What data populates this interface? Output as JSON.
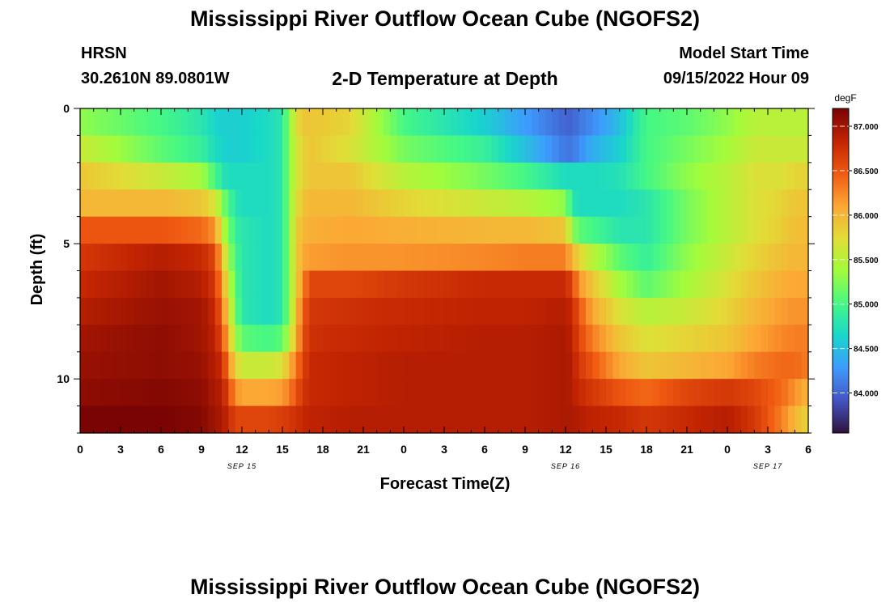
{
  "header": {
    "title": "Mississippi River Outflow Ocean Cube (NGOFS2)",
    "station": "HRSN",
    "coords": "30.2610N  89.0801W",
    "subtitle": "2-D Temperature at Depth",
    "model_start_label": "Model Start Time",
    "model_start_value": "09/15/2022 Hour 09"
  },
  "footer": {
    "title": "Mississippi River Outflow Ocean Cube (NGOFS2)"
  },
  "colors": {
    "colormap": [
      "#30123b",
      "#4454c4",
      "#3e9bfe",
      "#18d6cb",
      "#46f884",
      "#a2fc3c",
      "#e1dd37",
      "#fca735",
      "#ef5911",
      "#c22402",
      "#7a0403"
    ]
  },
  "chart_data": {
    "type": "heatmap",
    "title": "2-D Temperature at Depth",
    "xlabel": "Forecast Time(Z)",
    "ylabel": "Depth (ft)",
    "x_range_hours": [
      0,
      54
    ],
    "ylim": [
      0,
      12
    ],
    "y_inverted": true,
    "x_tick_labels": [
      "0",
      "3",
      "6",
      "9",
      "12",
      "15",
      "18",
      "21",
      "0",
      "3",
      "6",
      "9",
      "12",
      "15",
      "18",
      "21",
      "0",
      "3",
      "6"
    ],
    "y_tick_labels": [
      "0",
      "5",
      "10"
    ],
    "date_labels": [
      {
        "text": "SEP 15",
        "hour": 12
      },
      {
        "text": "SEP 16",
        "hour": 36
      },
      {
        "text": "SEP 17",
        "hour": 51
      }
    ],
    "colorbar": {
      "unit": "degF",
      "min": 83.55,
      "max": 87.2,
      "tick_labels": [
        "84.000",
        "84.500",
        "85.000",
        "85.500",
        "86.000",
        "86.500",
        "87.000"
      ],
      "tick_values": [
        84.0,
        84.5,
        85.0,
        85.5,
        86.0,
        86.5,
        87.0
      ]
    },
    "depth_levels": [
      0.5,
      1.5,
      2.5,
      3.5,
      4.5,
      5.5,
      6.5,
      7.5,
      8.5,
      9.5,
      10.5,
      11.5
    ],
    "time_nodes_hours": [
      0,
      6,
      9,
      10,
      10.5,
      11,
      11.5,
      12,
      14,
      15,
      15.5,
      16,
      16.5,
      17,
      20,
      24,
      30,
      33,
      36,
      36.5,
      37,
      38,
      40,
      42,
      45,
      48,
      50,
      52,
      53,
      54
    ],
    "temperatures": [
      [
        85.3,
        85.0,
        84.8,
        84.65,
        84.6,
        84.6,
        84.6,
        84.6,
        84.7,
        84.8,
        85.3,
        85.7,
        85.9,
        85.9,
        85.8,
        85.0,
        84.6,
        84.3,
        84.0,
        84.0,
        84.1,
        84.2,
        84.5,
        85.0,
        85.1,
        85.3,
        85.5,
        85.5,
        85.5,
        85.5
      ],
      [
        85.6,
        85.1,
        84.9,
        84.7,
        84.65,
        84.6,
        84.6,
        84.6,
        84.7,
        84.8,
        85.3,
        85.6,
        85.8,
        85.9,
        85.7,
        85.2,
        84.9,
        84.5,
        84.1,
        84.1,
        84.2,
        84.4,
        84.6,
        85.0,
        85.2,
        85.4,
        85.6,
        85.6,
        85.6,
        85.6
      ],
      [
        85.9,
        85.6,
        85.4,
        85.0,
        84.8,
        84.7,
        84.7,
        84.7,
        84.7,
        84.8,
        85.3,
        85.6,
        85.8,
        85.9,
        85.9,
        85.5,
        85.2,
        85.0,
        84.7,
        84.7,
        84.7,
        84.7,
        84.75,
        85.0,
        85.3,
        85.5,
        85.7,
        85.7,
        85.8,
        85.8
      ],
      [
        86.0,
        86.0,
        85.9,
        85.7,
        85.3,
        85.0,
        84.8,
        84.7,
        84.7,
        84.8,
        85.3,
        85.7,
        85.9,
        86.0,
        86.0,
        85.8,
        85.6,
        85.5,
        85.3,
        84.8,
        84.7,
        84.7,
        84.7,
        84.8,
        85.2,
        85.5,
        85.7,
        85.8,
        85.9,
        85.9
      ],
      [
        86.5,
        86.5,
        86.4,
        86.2,
        85.6,
        85.2,
        84.9,
        84.8,
        84.7,
        84.8,
        85.3,
        85.8,
        86.0,
        86.05,
        86.1,
        86.05,
        86.0,
        86.0,
        85.9,
        85.3,
        85.1,
        85.0,
        84.8,
        84.8,
        85.2,
        85.5,
        85.7,
        85.85,
        85.95,
        85.95
      ],
      [
        86.7,
        86.9,
        86.8,
        86.6,
        86.0,
        85.4,
        85.0,
        84.8,
        84.7,
        84.8,
        85.3,
        85.8,
        86.1,
        86.15,
        86.2,
        86.2,
        86.25,
        86.3,
        86.3,
        86.0,
        85.8,
        85.5,
        85.1,
        84.9,
        85.3,
        85.6,
        85.8,
        85.95,
        86.0,
        86.0
      ],
      [
        86.8,
        87.0,
        86.9,
        86.7,
        86.2,
        85.6,
        85.1,
        84.8,
        84.7,
        84.8,
        85.3,
        85.8,
        86.2,
        86.6,
        86.6,
        86.7,
        86.8,
        86.8,
        86.8,
        86.6,
        86.2,
        85.9,
        85.4,
        85.1,
        85.4,
        85.7,
        85.9,
        86.05,
        86.1,
        86.1
      ],
      [
        86.9,
        87.05,
        87.0,
        86.8,
        86.4,
        85.8,
        85.2,
        84.8,
        84.7,
        84.8,
        85.3,
        85.9,
        86.4,
        86.7,
        86.75,
        86.8,
        86.85,
        86.85,
        86.9,
        86.8,
        86.5,
        86.1,
        85.7,
        85.5,
        85.6,
        85.8,
        86.0,
        86.15,
        86.2,
        86.2
      ],
      [
        87.0,
        87.1,
        87.0,
        86.85,
        86.6,
        86.0,
        85.4,
        85.1,
        85.0,
        85.1,
        85.5,
        86.0,
        86.5,
        86.75,
        86.8,
        86.85,
        86.9,
        86.9,
        86.95,
        86.85,
        86.6,
        86.3,
        85.9,
        85.7,
        85.8,
        85.9,
        86.1,
        86.25,
        86.3,
        86.3
      ],
      [
        87.05,
        87.1,
        87.05,
        86.9,
        86.8,
        86.3,
        85.8,
        85.6,
        85.6,
        85.7,
        86.0,
        86.3,
        86.6,
        86.8,
        86.85,
        86.9,
        86.9,
        86.9,
        86.95,
        86.9,
        86.7,
        86.5,
        86.1,
        85.9,
        86.0,
        86.1,
        86.3,
        86.4,
        86.4,
        86.3
      ],
      [
        87.1,
        87.15,
        87.1,
        86.95,
        86.9,
        86.6,
        86.2,
        86.1,
        86.1,
        86.15,
        86.3,
        86.5,
        86.7,
        86.8,
        86.85,
        86.9,
        86.9,
        86.9,
        86.95,
        86.9,
        86.8,
        86.7,
        86.5,
        86.4,
        86.6,
        86.7,
        86.6,
        86.4,
        86.2,
        86.0
      ],
      [
        87.2,
        87.2,
        87.15,
        87.0,
        86.95,
        86.8,
        86.6,
        86.6,
        86.6,
        86.65,
        86.7,
        86.75,
        86.8,
        86.85,
        86.9,
        86.9,
        86.9,
        86.9,
        86.95,
        86.95,
        86.9,
        86.85,
        86.8,
        86.7,
        86.8,
        86.9,
        86.7,
        86.3,
        86.0,
        85.8
      ]
    ]
  }
}
